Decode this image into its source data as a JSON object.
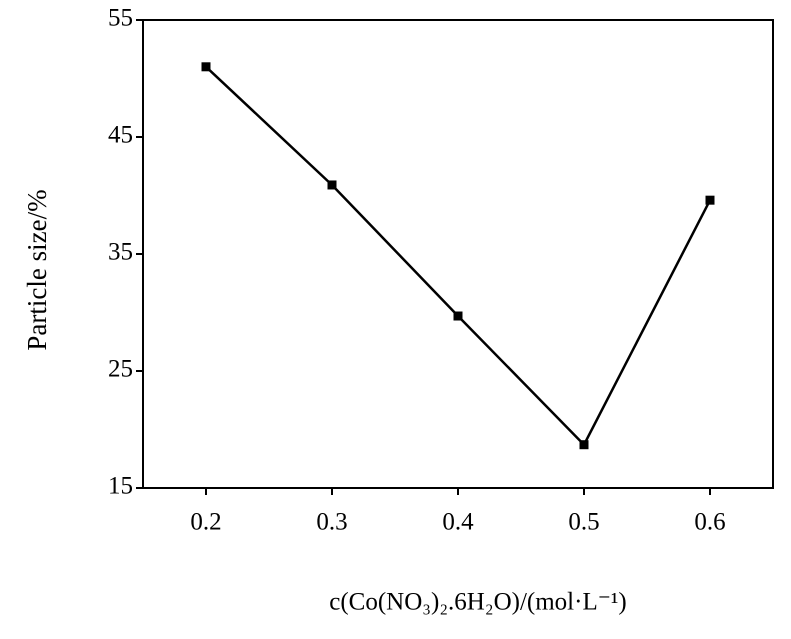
{
  "chart_data": {
    "type": "line",
    "x_label": "c(Co(NO₃)₂.6H₂O)/(mol·L⁻¹)",
    "y_label": "Particle size/%",
    "x": [
      0.2,
      0.3,
      0.4,
      0.5,
      0.6
    ],
    "values": [
      51.0,
      40.9,
      29.7,
      18.7,
      39.6
    ],
    "color": "#000000",
    "xlim": [
      0.15,
      0.65
    ],
    "xticks": [
      0.2,
      0.3,
      0.4,
      0.5,
      0.6
    ],
    "ylim": [
      15,
      55
    ],
    "yticks": [
      15,
      25,
      35,
      45,
      55
    ],
    "grid": false
  }
}
